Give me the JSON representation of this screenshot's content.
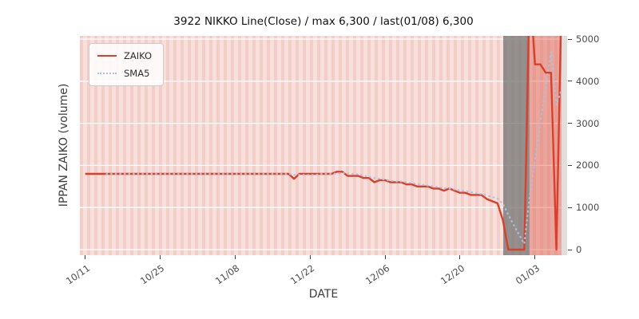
{
  "chart_data": {
    "type": "line",
    "title": "3922 NIKKO Line(Close) / max 6,300 / last(01/08) 6,300",
    "xlabel": "DATE",
    "ylabel": "IPPAN ZAIKO (volume)",
    "ylim": [
      0,
      5000
    ],
    "y_ticks": [
      0,
      1000,
      2000,
      3000,
      4000,
      5000
    ],
    "x_ticks": [
      "10/11",
      "10/25",
      "11/08",
      "11/22",
      "12/06",
      "12/20",
      "01/03"
    ],
    "x_domain": [
      "10/10",
      "01/09"
    ],
    "grid": "horizontal-white",
    "legend_position": "upper-left",
    "max_value": 6300,
    "last_label": "last(01/08) 6,300",
    "x": [
      "10/11",
      "10/12",
      "10/13",
      "10/14",
      "10/15",
      "10/16",
      "10/17",
      "10/18",
      "10/19",
      "10/20",
      "10/21",
      "10/22",
      "10/23",
      "10/24",
      "10/25",
      "10/26",
      "10/27",
      "10/28",
      "10/29",
      "10/30",
      "10/31",
      "11/01",
      "11/02",
      "11/03",
      "11/04",
      "11/05",
      "11/06",
      "11/07",
      "11/08",
      "11/09",
      "11/10",
      "11/11",
      "11/12",
      "11/13",
      "11/14",
      "11/15",
      "11/16",
      "11/17",
      "11/18",
      "11/19",
      "11/20",
      "11/21",
      "11/22",
      "11/23",
      "11/24",
      "11/25",
      "11/26",
      "11/27",
      "11/28",
      "11/29",
      "11/30",
      "12/01",
      "12/02",
      "12/03",
      "12/04",
      "12/05",
      "12/06",
      "12/07",
      "12/08",
      "12/09",
      "12/10",
      "12/11",
      "12/12",
      "12/13",
      "12/14",
      "12/15",
      "12/16",
      "12/17",
      "12/18",
      "12/19",
      "12/20",
      "12/21",
      "12/22",
      "12/23",
      "12/24",
      "12/25",
      "12/26",
      "12/27",
      "12/28",
      "12/29",
      "12/30",
      "12/31",
      "01/01",
      "01/02",
      "01/03",
      "01/04",
      "01/05",
      "01/06",
      "01/07",
      "01/08"
    ],
    "series": [
      {
        "name": "ZAIKO",
        "color": "#d8402c",
        "style": "solid",
        "values": [
          1800,
          1800,
          1800,
          1800,
          1800,
          1800,
          1800,
          1800,
          1800,
          1800,
          1800,
          1800,
          1800,
          1800,
          1800,
          1800,
          1800,
          1800,
          1800,
          1800,
          1800,
          1800,
          1800,
          1800,
          1800,
          1800,
          1800,
          1800,
          1800,
          1800,
          1800,
          1800,
          1800,
          1800,
          1800,
          1800,
          1800,
          1800,
          1800,
          1680,
          1800,
          1800,
          1800,
          1800,
          1800,
          1800,
          1800,
          1850,
          1850,
          1750,
          1750,
          1750,
          1700,
          1700,
          1600,
          1650,
          1650,
          1600,
          1600,
          1600,
          1550,
          1550,
          1500,
          1500,
          1500,
          1450,
          1450,
          1400,
          1450,
          1400,
          1350,
          1350,
          1300,
          1300,
          1300,
          1200,
          1150,
          1100,
          700,
          0,
          0,
          0,
          0,
          6300,
          4400,
          4400,
          4200,
          4200,
          0,
          6300
        ]
      },
      {
        "name": "SMA5",
        "color": "#a8c3dd",
        "style": "dotted",
        "values": [
          null,
          null,
          null,
          null,
          1800,
          1800,
          1800,
          1800,
          1800,
          1800,
          1800,
          1800,
          1800,
          1800,
          1800,
          1800,
          1800,
          1800,
          1800,
          1800,
          1800,
          1800,
          1800,
          1800,
          1800,
          1800,
          1800,
          1800,
          1800,
          1800,
          1800,
          1800,
          1800,
          1800,
          1800,
          1800,
          1800,
          1800,
          1800,
          1776,
          1776,
          1776,
          1776,
          1776,
          1800,
          1800,
          1800,
          1810,
          1820,
          1810,
          1800,
          1790,
          1760,
          1730,
          1700,
          1680,
          1660,
          1640,
          1620,
          1620,
          1600,
          1580,
          1560,
          1540,
          1520,
          1500,
          1480,
          1460,
          1450,
          1430,
          1410,
          1390,
          1370,
          1340,
          1320,
          1290,
          1250,
          1210,
          1090,
          830,
          590,
          360,
          140,
          1260,
          2140,
          3020,
          3860,
          4700,
          3440,
          3820
        ]
      }
    ],
    "bands": [
      {
        "start": "12/28",
        "end": "01/02",
        "label": "gray-holiday-band",
        "color": "rgba(120,120,120,0.78)"
      },
      {
        "start": "01/02",
        "end": "01/08",
        "label": "red-highlight-band",
        "color": "rgba(220,85,70,0.42)"
      },
      {
        "start": "01/08",
        "end": "01/09",
        "label": "right-edge-band",
        "color": "rgba(222,222,222,0.95)"
      }
    ]
  }
}
